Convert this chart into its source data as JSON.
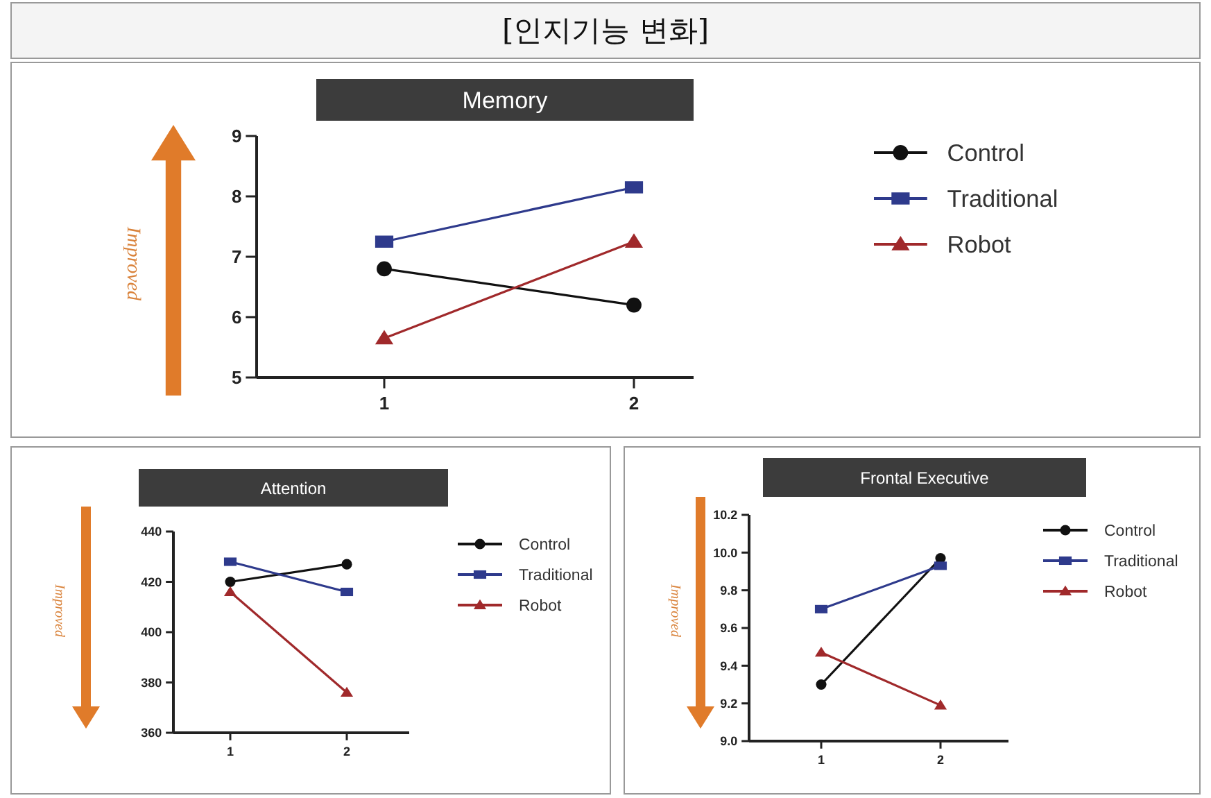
{
  "chart_data": [
    {
      "type": "other",
      "title": "[인지기능 변화]"
    },
    {
      "type": "line",
      "title": "Memory",
      "ylabel": "Improved",
      "categories": [
        "1",
        "2"
      ],
      "ylim": [
        5,
        9
      ],
      "yticks": [
        5,
        6,
        7,
        8,
        9
      ],
      "legend": "right",
      "series": [
        {
          "name": "Control",
          "color": "#111111",
          "marker": "circle",
          "values": [
            6.8,
            6.2
          ]
        },
        {
          "name": "Traditional",
          "color": "#2e3a8c",
          "marker": "square",
          "values": [
            7.25,
            8.15
          ]
        },
        {
          "name": "Robot",
          "color": "#a0292b",
          "marker": "triangle",
          "values": [
            5.65,
            7.25
          ]
        }
      ]
    },
    {
      "type": "line",
      "title": "Attention",
      "ylabel": "Improved",
      "categories": [
        "1",
        "2"
      ],
      "ylim": [
        360,
        440
      ],
      "yticks": [
        360,
        380,
        400,
        420,
        440
      ],
      "legend": "right",
      "series": [
        {
          "name": "Control",
          "color": "#111111",
          "marker": "circle",
          "values": [
            420,
            427
          ]
        },
        {
          "name": "Traditional",
          "color": "#2e3a8c",
          "marker": "square",
          "values": [
            428,
            416
          ]
        },
        {
          "name": "Robot",
          "color": "#a0292b",
          "marker": "triangle",
          "values": [
            416,
            376
          ]
        }
      ]
    },
    {
      "type": "line",
      "title": "Frontal Executive",
      "ylabel": "Improved",
      "categories": [
        "1",
        "2"
      ],
      "ylim": [
        9.0,
        10.2
      ],
      "yticks": [
        {
          "value": 9.0,
          "label": "9.0"
        },
        9.2,
        9.4,
        9.6,
        9.8,
        {
          "value": 10.0,
          "label": "10.0"
        },
        10.2
      ],
      "legend": "right",
      "series": [
        {
          "name": "Control",
          "color": "#111111",
          "marker": "circle",
          "values": [
            9.3,
            9.97
          ]
        },
        {
          "name": "Traditional",
          "color": "#2e3a8c",
          "marker": "square",
          "values": [
            9.7,
            9.93
          ]
        },
        {
          "name": "Robot",
          "color": "#a0292b",
          "marker": "triangle",
          "values": [
            9.47,
            9.19
          ]
        }
      ]
    }
  ]
}
